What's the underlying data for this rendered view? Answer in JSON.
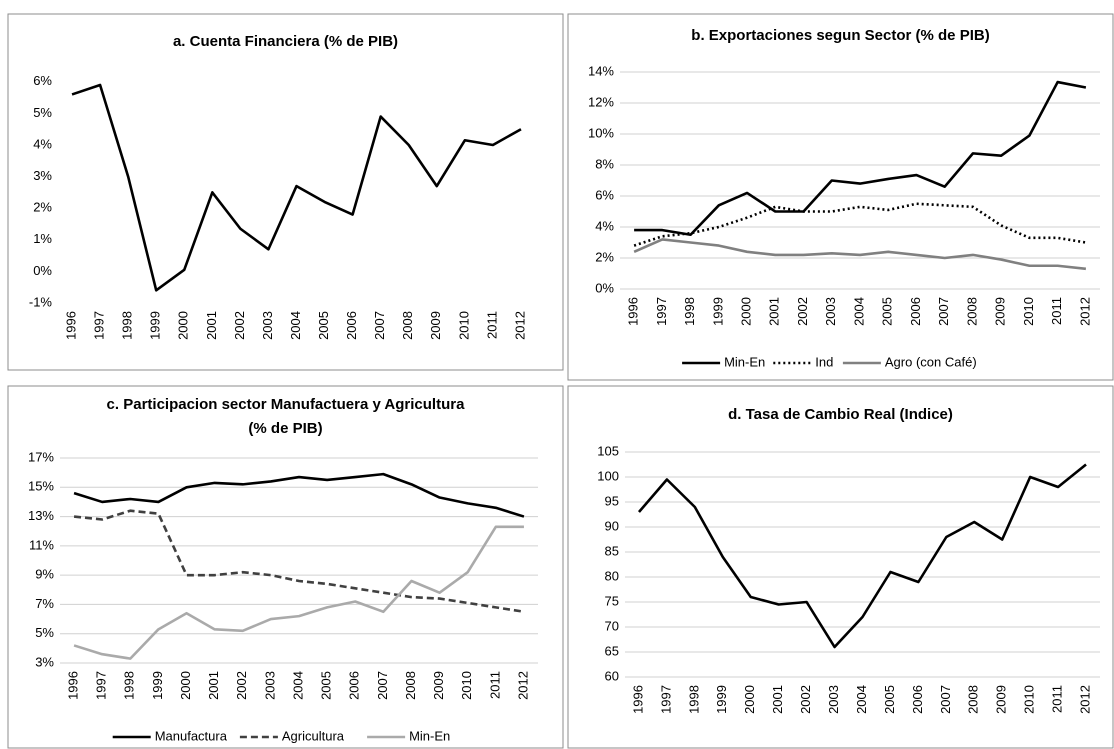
{
  "chart_data": [
    {
      "type": "line",
      "title": [
        "a. Cuenta Financiera (% de PIB)"
      ],
      "categories": [
        "1996",
        "1997",
        "1998",
        "1999",
        "2000",
        "2001",
        "2002",
        "2003",
        "2004",
        "2005",
        "2006",
        "2007",
        "2008",
        "2009",
        "2010",
        "2011",
        "2012"
      ],
      "series": [
        {
          "color": "#000000",
          "dash": "solid",
          "values": [
            5.6,
            5.9,
            3.0,
            -0.6,
            0.05,
            2.5,
            1.35,
            0.7,
            2.7,
            2.2,
            1.8,
            4.9,
            4.0,
            2.7,
            4.15,
            4.0,
            4.5
          ]
        }
      ],
      "ylim": [
        -1,
        6.5
      ],
      "yticks": [
        {
          "value": -1,
          "label": "-1%"
        },
        {
          "value": 0,
          "label": "0%"
        },
        {
          "value": 1,
          "label": "1%"
        },
        {
          "value": 2,
          "label": "2%"
        },
        {
          "value": 3,
          "label": "3%"
        },
        {
          "value": 4,
          "label": "4%"
        },
        {
          "value": 5,
          "label": "5%"
        },
        {
          "value": 6,
          "label": "6%"
        }
      ],
      "grid": false,
      "legend": "none"
    },
    {
      "type": "line",
      "title": [
        "b. Exportaciones segun Sector (% de PIB)"
      ],
      "categories": [
        "1996",
        "1997",
        "1998",
        "1999",
        "2000",
        "2001",
        "2002",
        "2003",
        "2004",
        "2005",
        "2006",
        "2007",
        "2008",
        "2009",
        "2010",
        "2011",
        "2012"
      ],
      "series": [
        {
          "name": "Min-En",
          "color": "#000000",
          "dash": "solid",
          "values": [
            3.8,
            3.8,
            3.5,
            5.4,
            6.2,
            5.0,
            5.0,
            7.0,
            6.8,
            7.1,
            7.35,
            6.6,
            8.75,
            8.6,
            9.9,
            13.35,
            13.0
          ]
        },
        {
          "name": "Ind",
          "color": "#000000",
          "dash": "dotted",
          "values": [
            2.8,
            3.4,
            3.6,
            4.0,
            4.6,
            5.3,
            5.0,
            5.0,
            5.3,
            5.1,
            5.5,
            5.4,
            5.3,
            4.1,
            3.3,
            3.3,
            3.0
          ]
        },
        {
          "name": "Agro (con Café)",
          "color": "#808080",
          "dash": "solid",
          "values": [
            2.4,
            3.2,
            3.0,
            2.8,
            2.4,
            2.2,
            2.2,
            2.3,
            2.2,
            2.4,
            2.2,
            2.0,
            2.2,
            1.9,
            1.5,
            1.5,
            1.3
          ]
        }
      ],
      "ylim": [
        0,
        14
      ],
      "yticks": [
        {
          "value": 0,
          "label": "0%"
        },
        {
          "value": 2,
          "label": "2%"
        },
        {
          "value": 4,
          "label": "4%"
        },
        {
          "value": 6,
          "label": "6%"
        },
        {
          "value": 8,
          "label": "8%"
        },
        {
          "value": 10,
          "label": "10%"
        },
        {
          "value": 12,
          "label": "12%"
        },
        {
          "value": 14,
          "label": "14%"
        }
      ],
      "grid": true,
      "legend": "bottom"
    },
    {
      "type": "line",
      "title": [
        "c. Participacion sector Manufactuera y Agricultura",
        "(% de PIB)"
      ],
      "categories": [
        "1996",
        "1997",
        "1998",
        "1999",
        "2000",
        "2001",
        "2002",
        "2003",
        "2004",
        "2005",
        "2006",
        "2007",
        "2008",
        "2009",
        "2010",
        "2011",
        "2012"
      ],
      "series": [
        {
          "name": "Manufactura",
          "color": "#000000",
          "dash": "solid",
          "values": [
            14.6,
            14.0,
            14.2,
            14.0,
            15.0,
            15.3,
            15.2,
            15.4,
            15.7,
            15.5,
            15.7,
            15.9,
            15.2,
            14.3,
            13.9,
            13.6,
            13.0
          ]
        },
        {
          "name": "Agricultura",
          "color": "#404040",
          "dash": "dashed",
          "values": [
            13.0,
            12.8,
            13.4,
            13.2,
            9.0,
            9.0,
            9.2,
            9.0,
            8.6,
            8.4,
            8.1,
            7.8,
            7.5,
            7.4,
            7.1,
            6.8,
            6.5
          ]
        },
        {
          "name": "Min-En",
          "color": "#aaaaaa",
          "dash": "solid",
          "values": [
            4.2,
            3.6,
            3.3,
            5.3,
            6.4,
            5.3,
            5.2,
            6.0,
            6.2,
            6.8,
            7.2,
            6.5,
            8.6,
            7.8,
            9.2,
            12.3,
            12.3
          ]
        }
      ],
      "ylim": [
        3,
        17
      ],
      "yticks": [
        {
          "value": 3,
          "label": "3%"
        },
        {
          "value": 5,
          "label": "5%"
        },
        {
          "value": 7,
          "label": "7%"
        },
        {
          "value": 9,
          "label": "9%"
        },
        {
          "value": 11,
          "label": "11%"
        },
        {
          "value": 13,
          "label": "13%"
        },
        {
          "value": 15,
          "label": "15%"
        },
        {
          "value": 17,
          "label": "17%"
        }
      ],
      "grid": true,
      "legend": "bottom"
    },
    {
      "type": "line",
      "title": [
        "d. Tasa de Cambio Real (Indice)"
      ],
      "categories": [
        "1996",
        "1997",
        "1998",
        "1999",
        "2000",
        "2001",
        "2002",
        "2003",
        "2004",
        "2005",
        "2006",
        "2007",
        "2008",
        "2009",
        "2010",
        "2011",
        "2012"
      ],
      "series": [
        {
          "color": "#000000",
          "dash": "solid",
          "values": [
            93,
            99.5,
            94,
            84,
            76,
            74.5,
            75,
            66,
            72,
            81,
            79,
            88,
            91,
            87.5,
            100,
            98,
            102.5
          ]
        }
      ],
      "ylim": [
        60,
        105
      ],
      "yticks": [
        60,
        65,
        70,
        75,
        80,
        85,
        90,
        95,
        100,
        105
      ],
      "grid": true,
      "legend": "none"
    }
  ]
}
